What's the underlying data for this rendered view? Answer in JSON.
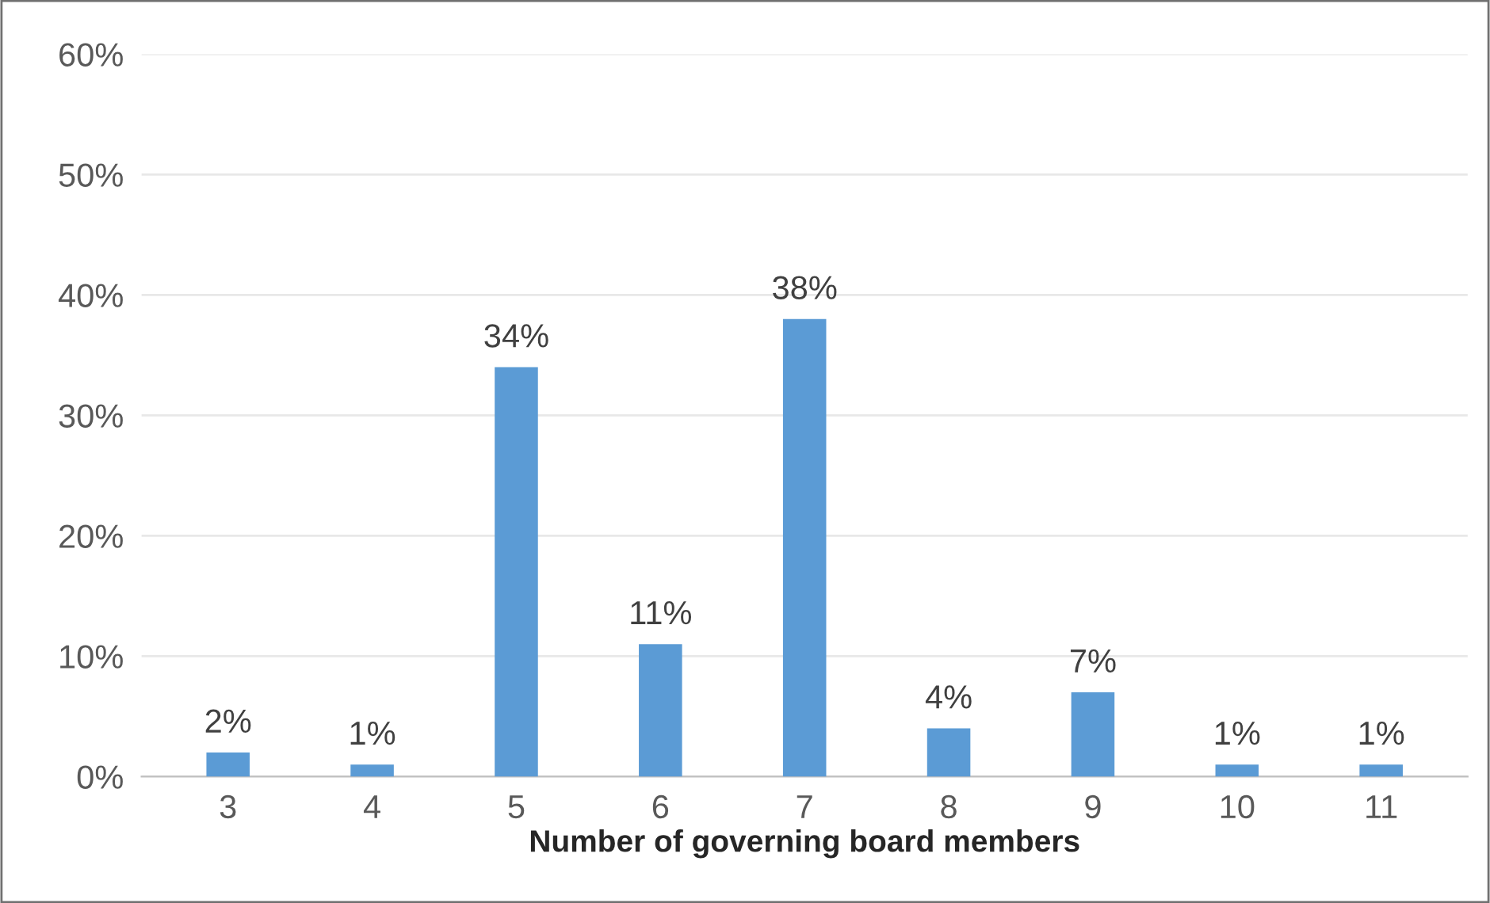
{
  "chart_data": {
    "type": "bar",
    "xlabel": "Number of governing board members",
    "categories": [
      "3",
      "4",
      "5",
      "6",
      "7",
      "8",
      "9",
      "10",
      "11"
    ],
    "values": [
      2,
      1,
      34,
      11,
      38,
      4,
      7,
      1,
      1
    ],
    "value_labels": [
      "2%",
      "1%",
      "34%",
      "11%",
      "38%",
      "4%",
      "7%",
      "1%",
      "1%"
    ],
    "color": "#5b9bd5",
    "grid": "y",
    "ylim": [
      0,
      60
    ],
    "yticks": [
      {
        "value": 0,
        "label": "0%"
      },
      {
        "value": 10,
        "label": "10%"
      },
      {
        "value": 20,
        "label": "20%"
      },
      {
        "value": 30,
        "label": "30%"
      },
      {
        "value": 40,
        "label": "40%"
      },
      {
        "value": 50,
        "label": "50%"
      },
      {
        "value": 60,
        "label": "60%"
      }
    ]
  }
}
